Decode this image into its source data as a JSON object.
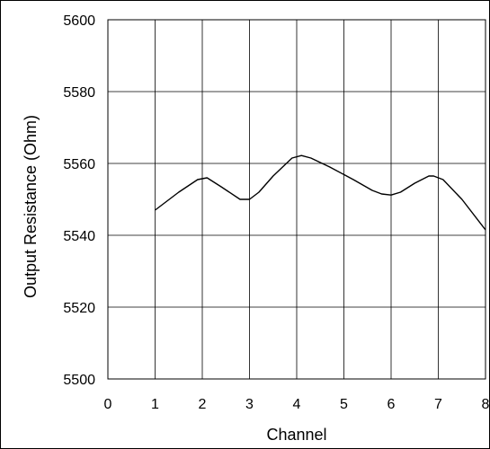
{
  "chart_data": {
    "type": "line",
    "title": "",
    "xlabel": "Channel",
    "ylabel": "Output Resistance (Ohm)",
    "xlim": [
      0,
      8
    ],
    "ylim": [
      5500,
      5600
    ],
    "xticks": [
      "0",
      "1",
      "2",
      "3",
      "4",
      "5",
      "6",
      "7",
      "8"
    ],
    "yticks": [
      "5500",
      "5520",
      "5540",
      "5560",
      "5580",
      "5600"
    ],
    "grid": true,
    "legend": "none",
    "line_color": "#000000",
    "series": [
      {
        "x": [
          1,
          1.5,
          1.9,
          2.1,
          2.4,
          2.8,
          3.0,
          3.2,
          3.5,
          3.9,
          4.1,
          4.3,
          4.7,
          5.2,
          5.6,
          5.8,
          6.0,
          6.2,
          6.5,
          6.8,
          6.9,
          7.1,
          7.5,
          8.0
        ],
        "y": [
          5547,
          5552,
          5555.5,
          5556,
          5553.5,
          5550,
          5550,
          5552,
          5556.5,
          5561.5,
          5562.2,
          5561.5,
          5559,
          5555.5,
          5552.5,
          5551.5,
          5551.2,
          5552,
          5554.5,
          5556.5,
          5556.5,
          5555.5,
          5550,
          5541.5
        ]
      }
    ]
  }
}
